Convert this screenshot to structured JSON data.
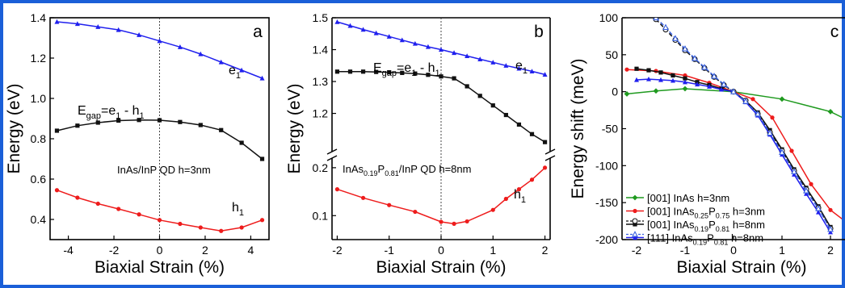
{
  "colors": {
    "frame": "#1a5fd8",
    "red": "#ee1c1c",
    "black": "#111111",
    "blue": "#2020ee",
    "green": "#1f9a1f",
    "dashed_blue": "#3a62e0"
  },
  "chart_data": [
    {
      "type": "line",
      "panel_label": "a",
      "xlabel": "Biaxial Strain (%)",
      "ylabel": "Energy (eV)",
      "xlim": [
        -4.8,
        4.8
      ],
      "ylim": [
        0.3,
        1.4
      ],
      "xticks": [
        -4,
        -2,
        0,
        2,
        4
      ],
      "xtick_labels": [
        "-4",
        "-2",
        "0",
        "2",
        "4"
      ],
      "yticks": [
        0.4,
        0.6,
        0.8,
        1.0,
        1.2,
        1.4
      ],
      "ytick_labels": [
        "0.4",
        "0.6",
        "0.8",
        "1.0",
        "1.2",
        "1.4"
      ],
      "vline_x": 0,
      "texts": {
        "series_e1": "e",
        "series_e1_sub": "1",
        "series_h1": "h",
        "series_h1_sub": "1",
        "gap_main": "E",
        "gap_sub": "gap",
        "gap_rest_a": "=e",
        "gap_sub2": "1",
        "gap_rest_b": " - h",
        "gap_sub3": "1",
        "annotation": "InAs/InP QD h=3nm"
      },
      "series": [
        {
          "key": "e1",
          "color": "blue",
          "marker": "triangle",
          "x": [
            -4.5,
            -3.6,
            -2.7,
            -1.8,
            -0.9,
            0,
            0.9,
            1.8,
            2.7,
            3.6,
            4.5
          ],
          "y": [
            1.38,
            1.37,
            1.355,
            1.34,
            1.315,
            1.285,
            1.255,
            1.22,
            1.18,
            1.14,
            1.1
          ]
        },
        {
          "key": "gap",
          "color": "black",
          "marker": "square",
          "x": [
            -4.5,
            -3.6,
            -2.7,
            -1.8,
            -0.9,
            0,
            0.9,
            1.8,
            2.7,
            3.6,
            4.5
          ],
          "y": [
            0.84,
            0.865,
            0.88,
            0.89,
            0.893,
            0.892,
            0.883,
            0.868,
            0.843,
            0.78,
            0.7
          ]
        },
        {
          "key": "h1",
          "color": "red",
          "marker": "circle",
          "x": [
            -4.5,
            -3.6,
            -2.7,
            -1.8,
            -0.9,
            0,
            0.9,
            1.8,
            2.7,
            3.6,
            4.5
          ],
          "y": [
            0.545,
            0.508,
            0.478,
            0.452,
            0.425,
            0.397,
            0.378,
            0.36,
            0.343,
            0.36,
            0.397
          ]
        }
      ]
    },
    {
      "type": "line",
      "panel_label": "b",
      "xlabel": "Biaxial Strain (%)",
      "ylabel": "Energy (eV)",
      "xlim": [
        -2.1,
        2.1
      ],
      "ylim_upper": [
        1.08,
        1.5
      ],
      "ylim_lower": [
        0.05,
        0.22
      ],
      "xticks": [
        -2,
        -1,
        0,
        1,
        2
      ],
      "xtick_labels": [
        "-2",
        "-1",
        "0",
        "1",
        "2"
      ],
      "yticks_upper": [
        1.2,
        1.3,
        1.4,
        1.5
      ],
      "ytick_labels_upper": [
        "1.2",
        "1.3",
        "1.4",
        "1.5"
      ],
      "yticks_lower": [
        0.1,
        0.2
      ],
      "ytick_labels_lower": [
        "0.1",
        "0.2"
      ],
      "vline_x": 0,
      "texts": {
        "series_e1": "e",
        "series_e1_sub": "1",
        "series_h1": "h",
        "series_h1_sub": "1",
        "gap_main": "E",
        "gap_sub": "gap",
        "gap_rest_a": "=e",
        "gap_sub2": "1",
        "gap_rest_b": " - h",
        "gap_sub3": "1",
        "ann_a": "InAs",
        "ann_sub1": "0.19",
        "ann_b": "P",
        "ann_sub2": "0.81",
        "ann_c": "/InP QD h=8nm"
      },
      "series": [
        {
          "key": "e1",
          "color": "blue",
          "marker": "triangle",
          "panel": "upper",
          "x": [
            -2.0,
            -1.75,
            -1.5,
            -1.25,
            -1.0,
            -0.75,
            -0.5,
            -0.25,
            0,
            0.25,
            0.5,
            0.75,
            1.0,
            1.25,
            1.5,
            1.75,
            2.0
          ],
          "y": [
            1.487,
            1.475,
            1.463,
            1.452,
            1.441,
            1.43,
            1.419,
            1.409,
            1.4,
            1.39,
            1.38,
            1.37,
            1.36,
            1.35,
            1.341,
            1.332,
            1.322
          ]
        },
        {
          "key": "gap",
          "color": "black",
          "marker": "square",
          "panel": "upper",
          "x": [
            -2.0,
            -1.75,
            -1.5,
            -1.25,
            -1.0,
            -0.75,
            -0.5,
            -0.25,
            0,
            0.25,
            0.5,
            0.75,
            1.0,
            1.25,
            1.5,
            1.75,
            2.0
          ],
          "y": [
            1.331,
            1.331,
            1.331,
            1.33,
            1.329,
            1.327,
            1.325,
            1.321,
            1.316,
            1.31,
            1.285,
            1.255,
            1.225,
            1.195,
            1.165,
            1.135,
            1.11
          ]
        },
        {
          "key": "h1",
          "color": "red",
          "marker": "circle",
          "panel": "lower",
          "x": [
            -2.0,
            -1.5,
            -1.0,
            -0.5,
            0,
            0.25,
            0.5,
            1.0,
            1.25,
            1.5,
            1.75,
            2.0
          ],
          "y": [
            0.155,
            0.137,
            0.122,
            0.108,
            0.087,
            0.083,
            0.088,
            0.112,
            0.135,
            0.155,
            0.175,
            0.2
          ]
        }
      ]
    },
    {
      "type": "line",
      "panel_label": "c",
      "xlabel": "Biaxial Strain (%)",
      "ylabel": "Energy shift (meV)",
      "xlim": [
        -2.3,
        2.3
      ],
      "ylim": [
        -200,
        100
      ],
      "xticks": [
        -2,
        -1,
        0,
        1,
        2
      ],
      "xtick_labels": [
        "-2",
        "-1",
        "0",
        "1",
        "2"
      ],
      "yticks": [
        -200,
        -150,
        -100,
        -50,
        0,
        50,
        100
      ],
      "ytick_labels": [
        "-200",
        "-150",
        "-100",
        "-50",
        "0",
        "50",
        "100"
      ],
      "legend_position": "bottom-left",
      "legend": [
        {
          "parts": [
            "[001] InAs h=3nm"
          ],
          "subs": []
        },
        {
          "parts": [
            "[001] InAs",
            "P",
            " h=3nm"
          ],
          "subs": [
            "0.25",
            "0.75"
          ]
        },
        {
          "parts": [
            "[001] InAs",
            "P",
            " h=8nm"
          ],
          "subs": [
            "0.19",
            "0.81"
          ]
        },
        {
          "parts": [
            "[111] InAs",
            "P",
            " h=8nm"
          ],
          "subs": [
            "0.19",
            "0.81"
          ]
        }
      ],
      "series": [
        {
          "key": "s1",
          "color": "green",
          "marker": "diamond",
          "x": [
            -2.2,
            -1.6,
            -1.0,
            0,
            1.0,
            2.0,
            2.4
          ],
          "y": [
            -3,
            1,
            4,
            0,
            -10,
            -27,
            -40
          ]
        },
        {
          "key": "s2",
          "color": "red",
          "marker": "circle",
          "x": [
            -2.2,
            -1.6,
            -1.0,
            -0.5,
            0,
            0.4,
            0.8,
            1.2,
            1.6,
            2.0,
            2.4
          ],
          "y": [
            30,
            28,
            22,
            12,
            0,
            -10,
            -35,
            -80,
            -125,
            -160,
            -180
          ]
        },
        {
          "key": "s3",
          "color": "black",
          "marker": "square",
          "x": [
            -2.0,
            -1.75,
            -1.5,
            -1.25,
            -1.0,
            -0.75,
            -0.5,
            -0.25,
            0,
            0.25,
            0.5,
            0.75,
            1.0,
            1.25,
            1.5,
            1.75,
            2.0
          ],
          "y": [
            31,
            29,
            26,
            22,
            18,
            13,
            9,
            4,
            0,
            -12,
            -28,
            -52,
            -78,
            -105,
            -130,
            -155,
            -183
          ]
        },
        {
          "key": "s3d",
          "color": "black",
          "marker": "open-circle",
          "dashed": true,
          "x": [
            -1.6,
            -1.4,
            -1.2,
            -1.0,
            -0.8,
            -0.6,
            -0.4,
            -0.2,
            0,
            0.25,
            0.5,
            0.75,
            1.0,
            1.25,
            1.5,
            1.75,
            2.0
          ],
          "y": [
            98,
            84,
            70,
            56,
            44,
            32,
            20,
            9,
            0,
            -12,
            -30,
            -55,
            -80,
            -107,
            -132,
            -157,
            -185
          ]
        },
        {
          "key": "s4",
          "color": "blue",
          "marker": "triangle",
          "x": [
            -2.0,
            -1.75,
            -1.5,
            -1.25,
            -1.0,
            -0.75,
            -0.5,
            -0.25,
            0,
            0.25,
            0.5,
            0.75,
            1.0,
            1.25,
            1.5,
            1.75,
            2.0
          ],
          "y": [
            16,
            17,
            16,
            15,
            13,
            10,
            7,
            3,
            0,
            -14,
            -32,
            -58,
            -85,
            -112,
            -138,
            -163,
            -190
          ]
        },
        {
          "key": "s4d",
          "color": "dashed_blue",
          "marker": "open-triangle",
          "dashed": true,
          "x": [
            -1.6,
            -1.4,
            -1.2,
            -1.0,
            -0.8,
            -0.6,
            -0.4,
            -0.2,
            0,
            0.25,
            0.5,
            0.75,
            1.0,
            1.25,
            1.5,
            1.75,
            2.0
          ],
          "y": [
            100,
            87,
            72,
            58,
            45,
            33,
            21,
            10,
            0,
            -13,
            -30,
            -56,
            -82,
            -108,
            -134,
            -158,
            -186
          ]
        }
      ]
    }
  ]
}
